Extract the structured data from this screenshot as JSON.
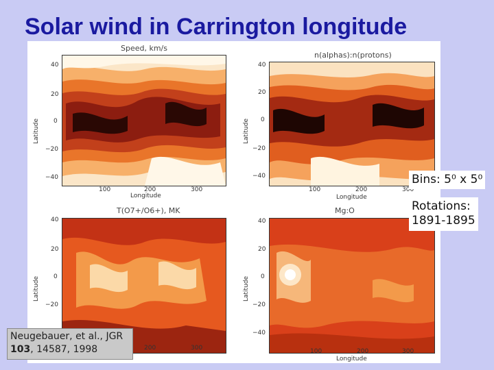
{
  "title": "Solar wind in Carrington longitude",
  "panels": [
    {
      "title": "Speed, km/s",
      "ylabel": "Latitude",
      "xlabel": "Longitude"
    },
    {
      "title": "n(alphas):n(protons)",
      "ylabel": "Latitude",
      "xlabel": "Longitude"
    },
    {
      "title": "T(O7+/O6+), MK",
      "ylabel": "Latitude",
      "xlabel": "Longitude"
    },
    {
      "title": "Mg:O",
      "ylabel": "Latitude",
      "xlabel": "Longitude"
    }
  ],
  "yticks": [
    "40",
    "20",
    "0",
    "−20",
    "−40"
  ],
  "xticks": [
    "100",
    "200",
    "300"
  ],
  "bins_label": "Bins: 5⁰ x 5⁰",
  "rotations_label": "Rotations:",
  "rotations_value": "1891-1895",
  "citation": {
    "line1": "Neugebauer, et al., JGR",
    "volume": "103",
    "rest": ", 14587, 1998"
  }
}
